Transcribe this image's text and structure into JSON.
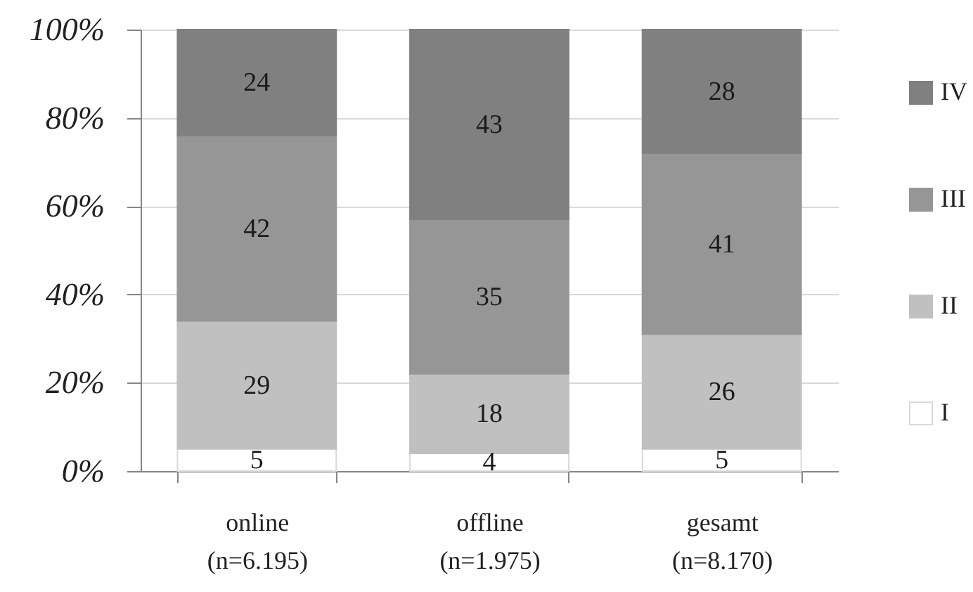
{
  "chart_data": {
    "type": "bar",
    "stacked": true,
    "categories": [
      "online\n(n=6.195)",
      "offline\n(n=1.975)",
      "gesamt\n(n=8.170)"
    ],
    "series": [
      {
        "name": "I",
        "color": "#ffffff",
        "values": [
          5,
          4,
          5
        ]
      },
      {
        "name": "II",
        "color": "#c0c0c0",
        "values": [
          29,
          18,
          26
        ]
      },
      {
        "name": "III",
        "color": "#969696",
        "values": [
          42,
          35,
          41
        ]
      },
      {
        "name": "IV",
        "color": "#808080",
        "values": [
          24,
          43,
          28
        ]
      }
    ],
    "ylim": [
      0,
      100
    ],
    "yticks": [
      {
        "value": 0,
        "label": "0%"
      },
      {
        "value": 20,
        "label": "20%"
      },
      {
        "value": 40,
        "label": "40%"
      },
      {
        "value": 60,
        "label": "60%"
      },
      {
        "value": 80,
        "label": "80%"
      },
      {
        "value": 100,
        "label": "100%"
      }
    ],
    "grid": "y",
    "legend": "right",
    "data_labels": true
  }
}
